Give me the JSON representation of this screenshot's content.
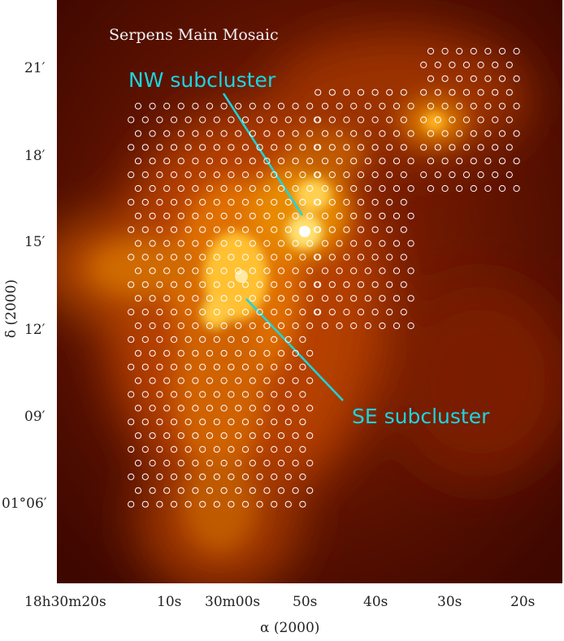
{
  "title": "Serpens Main Mosaic",
  "annotations": {
    "nw": "NW subcluster",
    "se": "SE subcluster"
  },
  "axes": {
    "ylabel": "δ (2000)",
    "xlabel": "α (2000)",
    "yticks": [
      "21′",
      "18′",
      "15′",
      "12′",
      "09′",
      "01°06′"
    ],
    "xticks": [
      "18h30m20s",
      "10s",
      "30m00s",
      "50s",
      "40s",
      "30s",
      "20s"
    ]
  },
  "colors": {
    "annotation": "#19d6e0",
    "background": "#5a0c00",
    "marker": "#ffffff"
  }
}
